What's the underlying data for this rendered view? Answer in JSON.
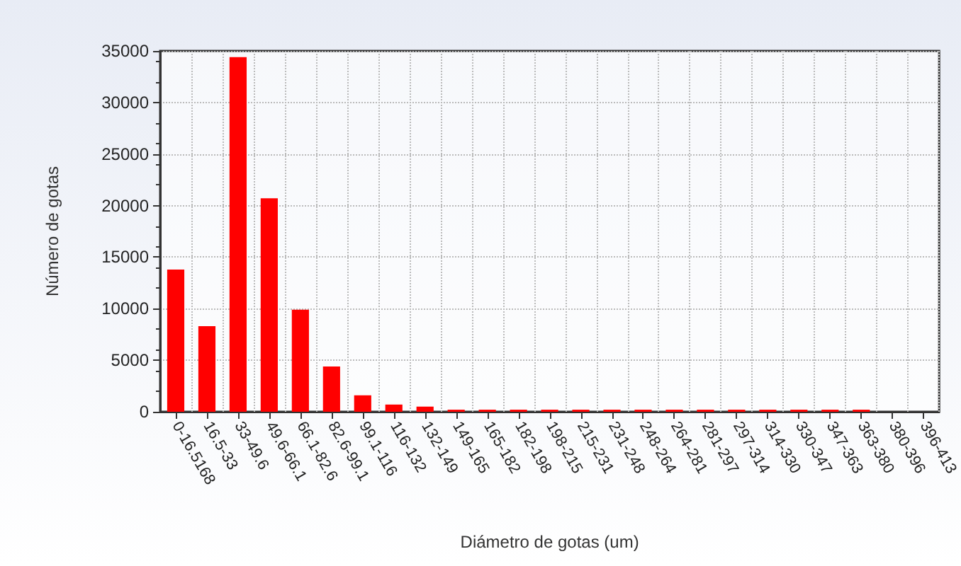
{
  "chart_data": {
    "type": "bar",
    "xlabel": "Diámetro de gotas (um)",
    "ylabel": "Número de gotas",
    "categories": [
      "0-16.5168",
      "16.5-33",
      "33-49.6",
      "49.6-66.1",
      "66.1-82.6",
      "82.6-99.1",
      "99.1-116",
      "116-132",
      "132-149",
      "149-165",
      "165-182",
      "182-198",
      "198-215",
      "215-231",
      "231-248",
      "248-264",
      "264-281",
      "281-297",
      "297-314",
      "314-330",
      "330-347",
      "347-363",
      "363-380",
      "380-396",
      "396-413"
    ],
    "values": [
      13800,
      8300,
      34400,
      20700,
      9900,
      4400,
      1600,
      700,
      500,
      200,
      200,
      200,
      200,
      200,
      200,
      200,
      200,
      200,
      200,
      200,
      200,
      200,
      200,
      null,
      null
    ],
    "color": "#ff0000",
    "ylim": [
      0,
      35000
    ],
    "yticks": [
      0,
      5000,
      10000,
      15000,
      20000,
      25000,
      30000,
      35000
    ],
    "grid": true
  }
}
